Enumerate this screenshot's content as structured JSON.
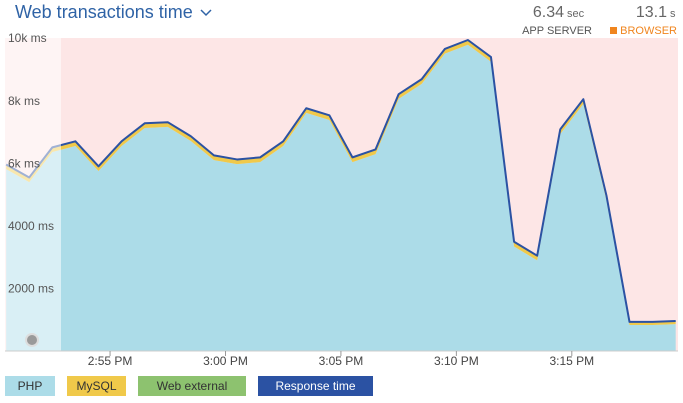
{
  "header": {
    "title": "Web transactions time",
    "app_server": {
      "value": "6.34",
      "unit": "sec",
      "label": "APP SERVER"
    },
    "browser": {
      "value": "13.1",
      "unit": "s",
      "label": "BROWSER"
    }
  },
  "chart_data": {
    "type": "area",
    "x": [
      890.5,
      891.5,
      892.5,
      893.5,
      894.5,
      895.5,
      896.5,
      897.5,
      898.5,
      899.5,
      900.5,
      901.5,
      902.5,
      903.5,
      904.5,
      905.5,
      906.5,
      907.5,
      908.5,
      909.5,
      910.5,
      911.5,
      912.5,
      913.5,
      914.5,
      915.5,
      916.5,
      917.5,
      918.5,
      919.5
    ],
    "xlim": [
      890.45,
      919.6
    ],
    "xticks": [
      {
        "value": 895,
        "label": "2:55 PM"
      },
      {
        "value": 900,
        "label": "3:00 PM"
      },
      {
        "value": 905,
        "label": "3:05 PM"
      },
      {
        "value": 910,
        "label": "3:10 PM"
      },
      {
        "value": 915,
        "label": "3:15 PM"
      }
    ],
    "ylim": [
      0,
      10000
    ],
    "yticks": [
      {
        "value": 2000,
        "label": "2000 ms"
      },
      {
        "value": 4000,
        "label": "4000 ms"
      },
      {
        "value": 6000,
        "label": "6k ms"
      },
      {
        "value": 8000,
        "label": "8k ms"
      },
      {
        "value": 10000,
        "label": "10k ms"
      }
    ],
    "series": [
      {
        "name": "PHP",
        "color": "#acdce8",
        "mark": "area",
        "values": [
          5810,
          5395,
          6356,
          6550,
          5750,
          6550,
          7125,
          7160,
          6710,
          6100,
          5970,
          6036,
          6550,
          7606,
          7380,
          6036,
          6290,
          8055,
          8536,
          9500,
          9786,
          9240,
          3340,
          2895,
          6933,
          7895,
          4820,
          830,
          830,
          860
        ]
      },
      {
        "name": "MySQL",
        "color": "#f0c94a",
        "mark": "area",
        "values": [
          150,
          150,
          150,
          150,
          150,
          150,
          150,
          150,
          150,
          150,
          150,
          150,
          150,
          150,
          150,
          150,
          150,
          150,
          150,
          150,
          150,
          150,
          150,
          150,
          150,
          150,
          150,
          100,
          100,
          100
        ]
      },
      {
        "name": "Web external",
        "color": "#8dc26f",
        "mark": "area",
        "values": [
          0,
          0,
          0,
          0,
          0,
          0,
          0,
          0,
          0,
          0,
          0,
          0,
          0,
          0,
          0,
          0,
          0,
          0,
          0,
          0,
          0,
          0,
          0,
          0,
          0,
          0,
          0,
          0,
          0,
          0
        ]
      },
      {
        "name": "Response time",
        "color": "#2b52a3",
        "mark": "line",
        "values": [
          5960,
          5545,
          6506,
          6700,
          5900,
          6700,
          7275,
          7310,
          6860,
          6250,
          6120,
          6186,
          6700,
          7756,
          7530,
          6186,
          6440,
          8205,
          8686,
          9650,
          9936,
          9390,
          3490,
          3045,
          7083,
          8045,
          4970,
          930,
          930,
          960
        ]
      }
    ]
  }
}
